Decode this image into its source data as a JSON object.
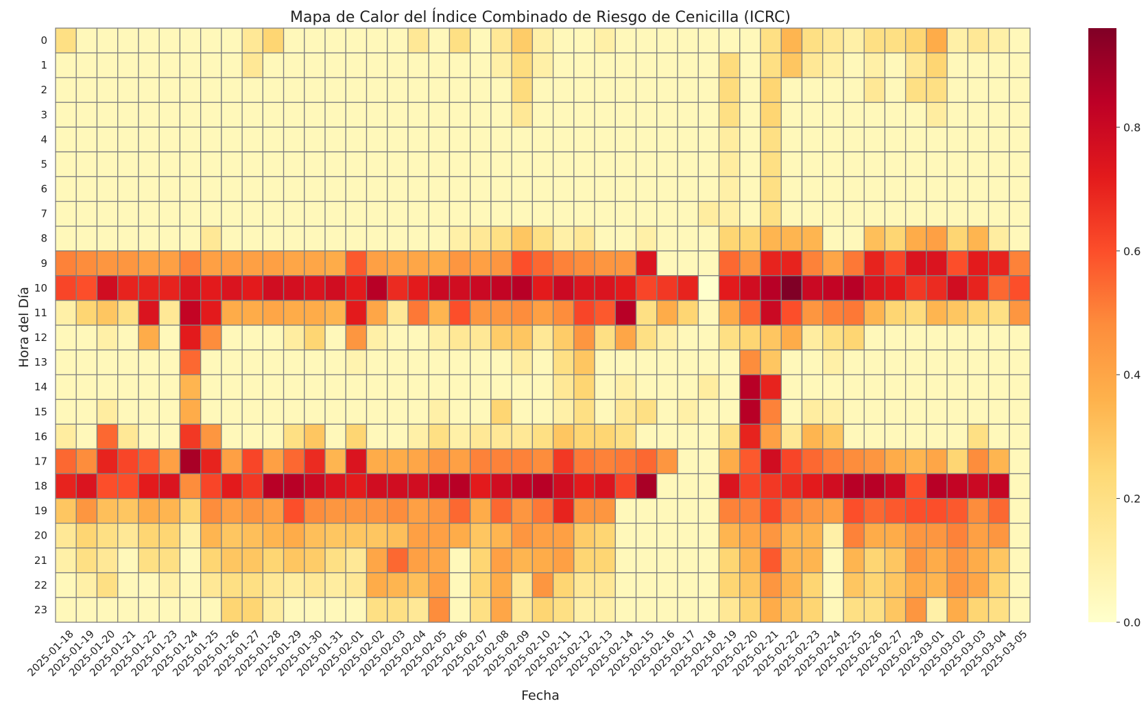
{
  "chart_data": {
    "type": "heatmap",
    "title": "Mapa de Calor del Índice Combinado de Riesgo de Cenicilla (ICRC)",
    "xlabel": "Fecha",
    "ylabel": "Hora del Día",
    "colormap": [
      "#ffffcc",
      "#ffeda0",
      "#fed976",
      "#feb24c",
      "#fd8d3c",
      "#fc4e2a",
      "#e31a1c",
      "#bd0026",
      "#800026"
    ],
    "grid_color": "#808080",
    "vmin": 0.0,
    "vmax": 0.96,
    "colorbar_ticks": [
      0.0,
      0.2,
      0.4,
      0.6,
      0.8
    ],
    "colorbar_tick_labels": [
      "0.0",
      "0.2",
      "0.4",
      "0.6",
      "0.8"
    ],
    "x": [
      "2025-01-18",
      "2025-01-19",
      "2025-01-20",
      "2025-01-21",
      "2025-01-22",
      "2025-01-23",
      "2025-01-24",
      "2025-01-25",
      "2025-01-26",
      "2025-01-27",
      "2025-01-28",
      "2025-01-29",
      "2025-01-30",
      "2025-01-31",
      "2025-02-01",
      "2025-02-02",
      "2025-02-03",
      "2025-02-04",
      "2025-02-05",
      "2025-02-06",
      "2025-02-07",
      "2025-02-08",
      "2025-02-09",
      "2025-02-10",
      "2025-02-11",
      "2025-02-12",
      "2025-02-13",
      "2025-02-14",
      "2025-02-15",
      "2025-02-16",
      "2025-02-17",
      "2025-02-18",
      "2025-02-19",
      "2025-02-20",
      "2025-02-21",
      "2025-02-22",
      "2025-02-23",
      "2025-02-24",
      "2025-02-25",
      "2025-02-26",
      "2025-02-27",
      "2025-02-28",
      "2025-03-01",
      "2025-03-02",
      "2025-03-03",
      "2025-03-04",
      "2025-03-05"
    ],
    "y": [
      "0",
      "1",
      "2",
      "3",
      "4",
      "5",
      "6",
      "7",
      "8",
      "9",
      "10",
      "11",
      "12",
      "13",
      "14",
      "15",
      "16",
      "17",
      "18",
      "19",
      "20",
      "21",
      "22",
      "23"
    ],
    "z": [
      [
        0.2,
        0.05,
        0.05,
        0.05,
        0.05,
        0.05,
        0.05,
        0.05,
        0.05,
        0.15,
        0.25,
        0.05,
        0.05,
        0.05,
        0.05,
        0.05,
        0.05,
        0.15,
        0.05,
        0.2,
        0.05,
        0.15,
        0.28,
        0.1,
        0.05,
        0.05,
        0.1,
        0.05,
        0.05,
        0.05,
        0.05,
        0.05,
        0.05,
        0.05,
        0.2,
        0.35,
        0.2,
        0.15,
        0.1,
        0.2,
        0.2,
        0.25,
        0.38,
        0.1,
        0.15,
        0.1,
        0.05
      ],
      [
        0.05,
        0.05,
        0.05,
        0.05,
        0.05,
        0.05,
        0.05,
        0.05,
        0.05,
        0.15,
        0.05,
        0.05,
        0.05,
        0.05,
        0.05,
        0.05,
        0.05,
        0.05,
        0.05,
        0.05,
        0.05,
        0.1,
        0.22,
        0.1,
        0.05,
        0.05,
        0.05,
        0.05,
        0.05,
        0.05,
        0.05,
        0.05,
        0.22,
        0.05,
        0.2,
        0.3,
        0.15,
        0.1,
        0.05,
        0.1,
        0.05,
        0.15,
        0.25,
        0.05,
        0.05,
        0.05,
        0.05
      ],
      [
        0.05,
        0.05,
        0.05,
        0.05,
        0.05,
        0.05,
        0.05,
        0.05,
        0.05,
        0.05,
        0.05,
        0.05,
        0.05,
        0.05,
        0.05,
        0.05,
        0.05,
        0.05,
        0.05,
        0.05,
        0.05,
        0.05,
        0.22,
        0.05,
        0.05,
        0.05,
        0.05,
        0.05,
        0.05,
        0.05,
        0.05,
        0.05,
        0.22,
        0.05,
        0.25,
        0.05,
        0.05,
        0.05,
        0.05,
        0.15,
        0.05,
        0.2,
        0.2,
        0.05,
        0.05,
        0.05,
        0.05
      ],
      [
        0.05,
        0.05,
        0.05,
        0.05,
        0.05,
        0.05,
        0.05,
        0.05,
        0.05,
        0.05,
        0.05,
        0.05,
        0.05,
        0.05,
        0.05,
        0.05,
        0.05,
        0.05,
        0.05,
        0.05,
        0.05,
        0.05,
        0.15,
        0.05,
        0.05,
        0.05,
        0.05,
        0.05,
        0.05,
        0.05,
        0.05,
        0.05,
        0.2,
        0.05,
        0.25,
        0.05,
        0.05,
        0.05,
        0.05,
        0.05,
        0.05,
        0.05,
        0.12,
        0.05,
        0.05,
        0.05,
        0.05
      ],
      [
        0.05,
        0.05,
        0.05,
        0.05,
        0.05,
        0.05,
        0.05,
        0.05,
        0.05,
        0.05,
        0.05,
        0.05,
        0.05,
        0.05,
        0.05,
        0.05,
        0.05,
        0.05,
        0.05,
        0.05,
        0.05,
        0.05,
        0.05,
        0.05,
        0.05,
        0.05,
        0.05,
        0.05,
        0.05,
        0.05,
        0.05,
        0.05,
        0.12,
        0.05,
        0.2,
        0.05,
        0.05,
        0.05,
        0.05,
        0.05,
        0.05,
        0.05,
        0.05,
        0.05,
        0.05,
        0.05,
        0.05
      ],
      [
        0.05,
        0.05,
        0.05,
        0.05,
        0.05,
        0.05,
        0.05,
        0.05,
        0.05,
        0.05,
        0.05,
        0.05,
        0.05,
        0.05,
        0.05,
        0.05,
        0.05,
        0.05,
        0.05,
        0.05,
        0.05,
        0.05,
        0.05,
        0.05,
        0.05,
        0.05,
        0.05,
        0.05,
        0.05,
        0.05,
        0.05,
        0.05,
        0.12,
        0.05,
        0.2,
        0.05,
        0.05,
        0.05,
        0.05,
        0.05,
        0.05,
        0.05,
        0.05,
        0.05,
        0.05,
        0.05,
        0.05
      ],
      [
        0.05,
        0.05,
        0.05,
        0.05,
        0.05,
        0.05,
        0.05,
        0.05,
        0.05,
        0.05,
        0.05,
        0.05,
        0.05,
        0.05,
        0.05,
        0.05,
        0.05,
        0.05,
        0.05,
        0.05,
        0.05,
        0.05,
        0.05,
        0.05,
        0.05,
        0.05,
        0.05,
        0.05,
        0.05,
        0.05,
        0.05,
        0.05,
        0.1,
        0.05,
        0.2,
        0.05,
        0.05,
        0.05,
        0.05,
        0.05,
        0.05,
        0.05,
        0.05,
        0.05,
        0.05,
        0.05,
        0.05
      ],
      [
        0.05,
        0.05,
        0.05,
        0.05,
        0.05,
        0.05,
        0.05,
        0.05,
        0.05,
        0.05,
        0.05,
        0.05,
        0.05,
        0.05,
        0.05,
        0.05,
        0.05,
        0.05,
        0.05,
        0.05,
        0.05,
        0.05,
        0.05,
        0.05,
        0.05,
        0.05,
        0.05,
        0.05,
        0.05,
        0.05,
        0.05,
        0.12,
        0.1,
        0.05,
        0.2,
        0.05,
        0.05,
        0.05,
        0.05,
        0.05,
        0.05,
        0.05,
        0.05,
        0.05,
        0.05,
        0.05,
        0.05
      ],
      [
        0.05,
        0.05,
        0.05,
        0.05,
        0.05,
        0.05,
        0.05,
        0.15,
        0.05,
        0.05,
        0.05,
        0.05,
        0.05,
        0.05,
        0.05,
        0.05,
        0.05,
        0.05,
        0.05,
        0.1,
        0.15,
        0.2,
        0.3,
        0.2,
        0.1,
        0.15,
        0.05,
        0.05,
        0.1,
        0.05,
        0.05,
        0.05,
        0.25,
        0.25,
        0.35,
        0.35,
        0.35,
        0.05,
        0.05,
        0.32,
        0.25,
        0.38,
        0.42,
        0.25,
        0.35,
        0.12,
        0.05
      ],
      [
        0.5,
        0.48,
        0.45,
        0.45,
        0.42,
        0.42,
        0.5,
        0.42,
        0.42,
        0.42,
        0.42,
        0.4,
        0.4,
        0.38,
        0.58,
        0.42,
        0.4,
        0.4,
        0.38,
        0.45,
        0.42,
        0.45,
        0.6,
        0.55,
        0.5,
        0.48,
        0.45,
        0.45,
        0.75,
        0.05,
        0.05,
        0.05,
        0.55,
        0.45,
        0.7,
        0.7,
        0.5,
        0.4,
        0.52,
        0.7,
        0.62,
        0.75,
        0.75,
        0.6,
        0.72,
        0.7,
        0.5
      ],
      [
        0.62,
        0.6,
        0.78,
        0.7,
        0.7,
        0.7,
        0.75,
        0.72,
        0.75,
        0.72,
        0.78,
        0.77,
        0.75,
        0.78,
        0.72,
        0.85,
        0.68,
        0.72,
        0.8,
        0.78,
        0.8,
        0.82,
        0.85,
        0.72,
        0.8,
        0.75,
        0.75,
        0.72,
        0.62,
        0.65,
        0.7,
        0.0,
        0.72,
        0.78,
        0.85,
        0.96,
        0.8,
        0.82,
        0.85,
        0.75,
        0.72,
        0.65,
        0.68,
        0.78,
        0.7,
        0.55,
        0.6
      ],
      [
        0.1,
        0.25,
        0.3,
        0.2,
        0.75,
        0.15,
        0.82,
        0.72,
        0.38,
        0.38,
        0.4,
        0.38,
        0.38,
        0.35,
        0.72,
        0.4,
        0.15,
        0.52,
        0.35,
        0.6,
        0.45,
        0.45,
        0.48,
        0.42,
        0.48,
        0.62,
        0.58,
        0.85,
        0.2,
        0.38,
        0.25,
        0.05,
        0.38,
        0.55,
        0.8,
        0.6,
        0.45,
        0.5,
        0.52,
        0.35,
        0.25,
        0.22,
        0.35,
        0.3,
        0.25,
        0.2,
        0.45
      ],
      [
        0.05,
        0.05,
        0.1,
        0.05,
        0.38,
        0.05,
        0.72,
        0.48,
        0.05,
        0.05,
        0.05,
        0.12,
        0.25,
        0.05,
        0.45,
        0.1,
        0.05,
        0.05,
        0.1,
        0.15,
        0.15,
        0.28,
        0.3,
        0.15,
        0.28,
        0.45,
        0.2,
        0.4,
        0.2,
        0.1,
        0.05,
        0.05,
        0.2,
        0.25,
        0.3,
        0.38,
        0.12,
        0.2,
        0.25,
        0.05,
        0.05,
        0.05,
        0.05,
        0.05,
        0.05,
        0.05,
        0.05
      ],
      [
        0.05,
        0.05,
        0.05,
        0.05,
        0.05,
        0.05,
        0.55,
        0.05,
        0.05,
        0.05,
        0.05,
        0.05,
        0.05,
        0.05,
        0.08,
        0.05,
        0.05,
        0.05,
        0.05,
        0.05,
        0.05,
        0.05,
        0.12,
        0.05,
        0.2,
        0.3,
        0.05,
        0.05,
        0.05,
        0.05,
        0.05,
        0.05,
        0.05,
        0.48,
        0.3,
        0.05,
        0.05,
        0.1,
        0.05,
        0.05,
        0.05,
        0.05,
        0.05,
        0.05,
        0.05,
        0.05,
        0.05
      ],
      [
        0.05,
        0.05,
        0.05,
        0.05,
        0.05,
        0.05,
        0.35,
        0.05,
        0.05,
        0.05,
        0.05,
        0.05,
        0.05,
        0.05,
        0.05,
        0.05,
        0.05,
        0.05,
        0.05,
        0.05,
        0.05,
        0.05,
        0.05,
        0.05,
        0.15,
        0.25,
        0.05,
        0.1,
        0.05,
        0.05,
        0.05,
        0.12,
        0.05,
        0.85,
        0.7,
        0.05,
        0.05,
        0.05,
        0.05,
        0.05,
        0.05,
        0.05,
        0.05,
        0.05,
        0.05,
        0.05,
        0.05
      ],
      [
        0.05,
        0.05,
        0.12,
        0.05,
        0.05,
        0.05,
        0.38,
        0.05,
        0.05,
        0.05,
        0.05,
        0.05,
        0.05,
        0.05,
        0.05,
        0.05,
        0.05,
        0.05,
        0.1,
        0.05,
        0.05,
        0.25,
        0.05,
        0.05,
        0.1,
        0.2,
        0.05,
        0.15,
        0.2,
        0.05,
        0.1,
        0.05,
        0.05,
        0.85,
        0.5,
        0.05,
        0.12,
        0.1,
        0.05,
        0.05,
        0.05,
        0.05,
        0.05,
        0.05,
        0.05,
        0.05,
        0.05
      ],
      [
        0.12,
        0.05,
        0.55,
        0.15,
        0.05,
        0.05,
        0.65,
        0.45,
        0.05,
        0.05,
        0.05,
        0.2,
        0.3,
        0.05,
        0.25,
        0.05,
        0.05,
        0.1,
        0.2,
        0.1,
        0.15,
        0.15,
        0.15,
        0.2,
        0.3,
        0.25,
        0.25,
        0.2,
        0.05,
        0.05,
        0.05,
        0.05,
        0.2,
        0.7,
        0.42,
        0.15,
        0.35,
        0.3,
        0.05,
        0.05,
        0.05,
        0.05,
        0.05,
        0.05,
        0.2,
        0.05,
        0.05
      ],
      [
        0.55,
        0.48,
        0.7,
        0.62,
        0.58,
        0.42,
        0.88,
        0.7,
        0.42,
        0.62,
        0.42,
        0.55,
        0.68,
        0.35,
        0.75,
        0.38,
        0.38,
        0.4,
        0.45,
        0.42,
        0.5,
        0.5,
        0.5,
        0.48,
        0.65,
        0.52,
        0.5,
        0.52,
        0.55,
        0.45,
        0.05,
        0.05,
        0.38,
        0.58,
        0.78,
        0.62,
        0.55,
        0.5,
        0.48,
        0.45,
        0.38,
        0.35,
        0.4,
        0.25,
        0.48,
        0.35,
        0.05
      ],
      [
        0.7,
        0.75,
        0.6,
        0.6,
        0.72,
        0.75,
        0.48,
        0.62,
        0.72,
        0.65,
        0.85,
        0.85,
        0.8,
        0.75,
        0.72,
        0.78,
        0.78,
        0.78,
        0.82,
        0.85,
        0.72,
        0.78,
        0.82,
        0.85,
        0.78,
        0.72,
        0.75,
        0.62,
        0.88,
        0.05,
        0.05,
        0.05,
        0.75,
        0.62,
        0.65,
        0.68,
        0.72,
        0.78,
        0.85,
        0.85,
        0.8,
        0.6,
        0.85,
        0.82,
        0.8,
        0.82,
        0.05
      ],
      [
        0.3,
        0.45,
        0.32,
        0.3,
        0.38,
        0.35,
        0.25,
        0.48,
        0.42,
        0.45,
        0.42,
        0.6,
        0.48,
        0.45,
        0.45,
        0.45,
        0.48,
        0.42,
        0.45,
        0.55,
        0.38,
        0.55,
        0.45,
        0.52,
        0.7,
        0.45,
        0.45,
        0.05,
        0.05,
        0.05,
        0.05,
        0.05,
        0.5,
        0.5,
        0.62,
        0.5,
        0.45,
        0.42,
        0.6,
        0.55,
        0.58,
        0.6,
        0.6,
        0.58,
        0.48,
        0.55,
        0.05
      ],
      [
        0.15,
        0.25,
        0.2,
        0.15,
        0.25,
        0.25,
        0.1,
        0.35,
        0.3,
        0.32,
        0.35,
        0.38,
        0.32,
        0.3,
        0.3,
        0.3,
        0.32,
        0.42,
        0.42,
        0.38,
        0.3,
        0.35,
        0.45,
        0.42,
        0.42,
        0.28,
        0.25,
        0.05,
        0.05,
        0.05,
        0.05,
        0.05,
        0.35,
        0.4,
        0.45,
        0.35,
        0.35,
        0.1,
        0.5,
        0.38,
        0.38,
        0.45,
        0.45,
        0.5,
        0.42,
        0.45,
        0.05
      ],
      [
        0.1,
        0.2,
        0.15,
        0.05,
        0.2,
        0.2,
        0.05,
        0.25,
        0.3,
        0.3,
        0.25,
        0.3,
        0.28,
        0.2,
        0.15,
        0.4,
        0.55,
        0.42,
        0.4,
        0.05,
        0.25,
        0.42,
        0.35,
        0.38,
        0.42,
        0.25,
        0.25,
        0.05,
        0.05,
        0.05,
        0.05,
        0.05,
        0.25,
        0.35,
        0.58,
        0.35,
        0.35,
        0.05,
        0.35,
        0.25,
        0.3,
        0.45,
        0.38,
        0.45,
        0.38,
        0.3,
        0.05
      ],
      [
        0.05,
        0.1,
        0.2,
        0.05,
        0.05,
        0.1,
        0.05,
        0.15,
        0.2,
        0.2,
        0.15,
        0.12,
        0.15,
        0.12,
        0.15,
        0.38,
        0.35,
        0.32,
        0.42,
        0.05,
        0.25,
        0.38,
        0.15,
        0.45,
        0.25,
        0.15,
        0.15,
        0.05,
        0.05,
        0.05,
        0.05,
        0.05,
        0.25,
        0.3,
        0.45,
        0.35,
        0.25,
        0.05,
        0.3,
        0.25,
        0.3,
        0.38,
        0.35,
        0.45,
        0.4,
        0.25,
        0.05
      ],
      [
        0.05,
        0.05,
        0.05,
        0.05,
        0.05,
        0.05,
        0.05,
        0.05,
        0.25,
        0.25,
        0.12,
        0.05,
        0.05,
        0.05,
        0.05,
        0.2,
        0.2,
        0.15,
        0.48,
        0.05,
        0.2,
        0.4,
        0.15,
        0.25,
        0.2,
        0.1,
        0.1,
        0.05,
        0.05,
        0.05,
        0.05,
        0.05,
        0.15,
        0.25,
        0.38,
        0.3,
        0.25,
        0.05,
        0.2,
        0.2,
        0.3,
        0.45,
        0.1,
        0.38,
        0.25,
        0.2,
        0.05
      ]
    ]
  }
}
